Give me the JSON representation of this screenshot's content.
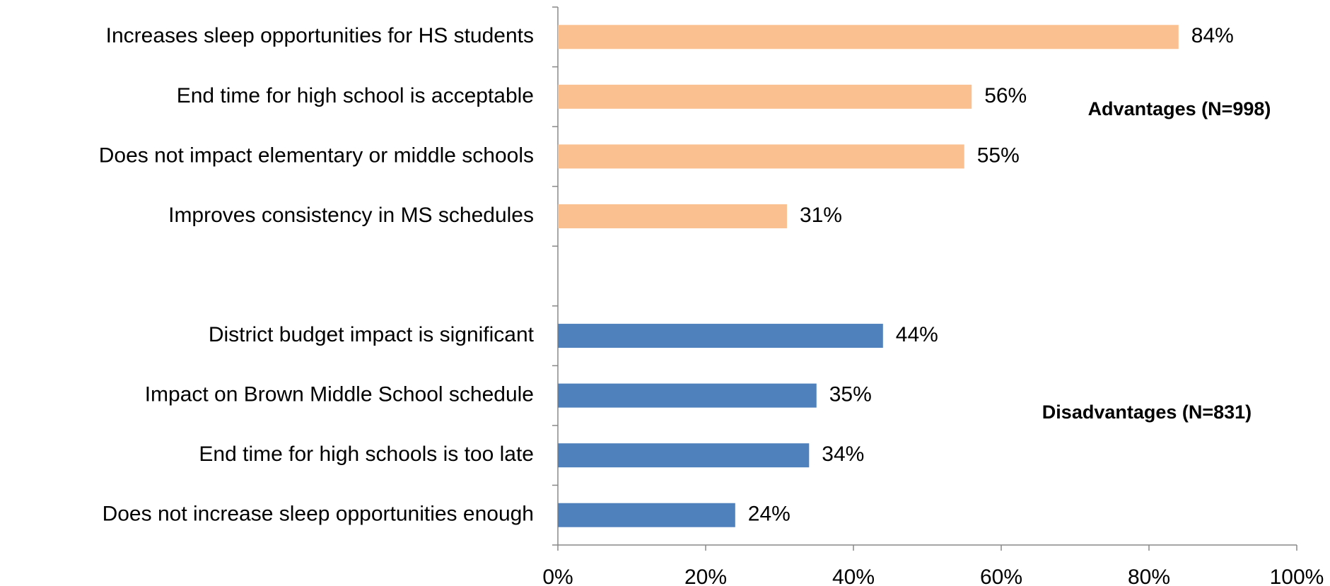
{
  "chart_data": {
    "type": "hbar",
    "categories": [
      "Increases sleep opportunities for HS students",
      "End time for high school is acceptable",
      "Does not impact elementary or middle schools",
      "Improves consistency in MS schedules",
      null,
      "District budget impact is significant",
      "Impact on Brown Middle School schedule",
      "End time for high schools is too late",
      "Does not increase sleep opportunities enough"
    ],
    "series": [
      {
        "name": "Advantages (N=998)",
        "color": "#fac090",
        "values": [
          84,
          56,
          55,
          31,
          null,
          null,
          null,
          null,
          null
        ],
        "value_labels": [
          "84%",
          "56%",
          "55%",
          "31%",
          null,
          null,
          null,
          null,
          null
        ]
      },
      {
        "name": "Disadvantages (N=831)",
        "color": "#4f81bd",
        "values": [
          null,
          null,
          null,
          null,
          null,
          44,
          35,
          34,
          24
        ],
        "value_labels": [
          null,
          null,
          null,
          null,
          null,
          "44%",
          "35%",
          "34%",
          "24%"
        ]
      }
    ],
    "xlim": [
      0,
      100
    ],
    "xticks": [
      {
        "value": 0,
        "label": "0%"
      },
      {
        "value": 20,
        "label": "20%"
      },
      {
        "value": 40,
        "label": "40%"
      },
      {
        "value": 60,
        "label": "60%"
      },
      {
        "value": 80,
        "label": "80%"
      },
      {
        "value": 100,
        "label": "100%"
      }
    ],
    "grid": false
  }
}
